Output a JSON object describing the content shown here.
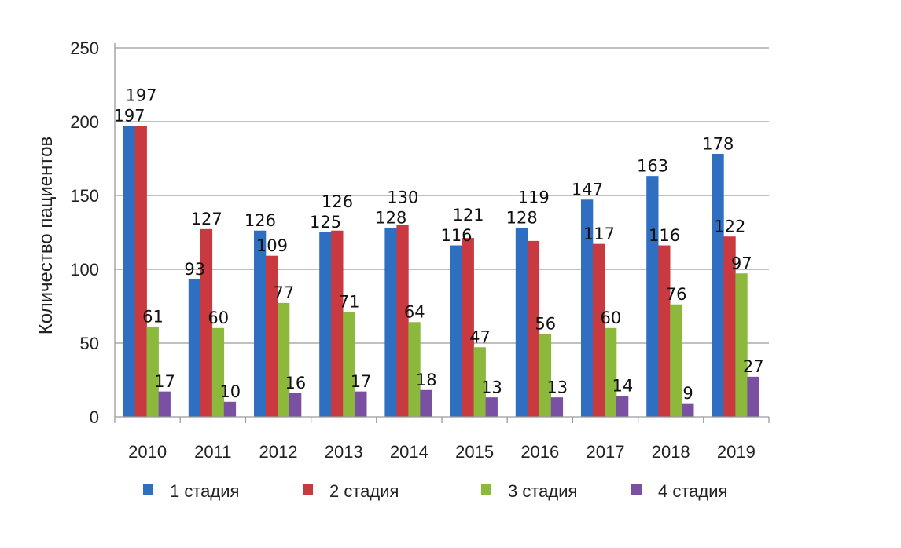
{
  "chart_data": {
    "type": "bar",
    "title": "",
    "xlabel": "",
    "ylabel": "Количество пациентов",
    "ylim": [
      0,
      250
    ],
    "yticks": [
      0,
      50,
      100,
      150,
      200,
      250
    ],
    "grid": true,
    "legend_placement": "bottom",
    "categories": [
      "2010",
      "2011",
      "2012",
      "2013",
      "2014",
      "2015",
      "2016",
      "2017",
      "2018",
      "2019"
    ],
    "series": [
      {
        "name": "1 стадия",
        "color": "#2e6fc2",
        "values": [
          197,
          93,
          126,
          125,
          128,
          116,
          128,
          147,
          163,
          178
        ]
      },
      {
        "name": "2 стадия",
        "color": "#c83a40",
        "values": [
          197,
          127,
          109,
          126,
          130,
          121,
          119,
          117,
          116,
          122
        ]
      },
      {
        "name": "3 стадия",
        "color": "#8cb83c",
        "values": [
          61,
          60,
          77,
          71,
          64,
          47,
          56,
          60,
          76,
          97
        ]
      },
      {
        "name": "4 стадия",
        "color": "#7a50a2",
        "values": [
          17,
          10,
          16,
          17,
          18,
          13,
          13,
          14,
          9,
          27
        ]
      }
    ]
  }
}
